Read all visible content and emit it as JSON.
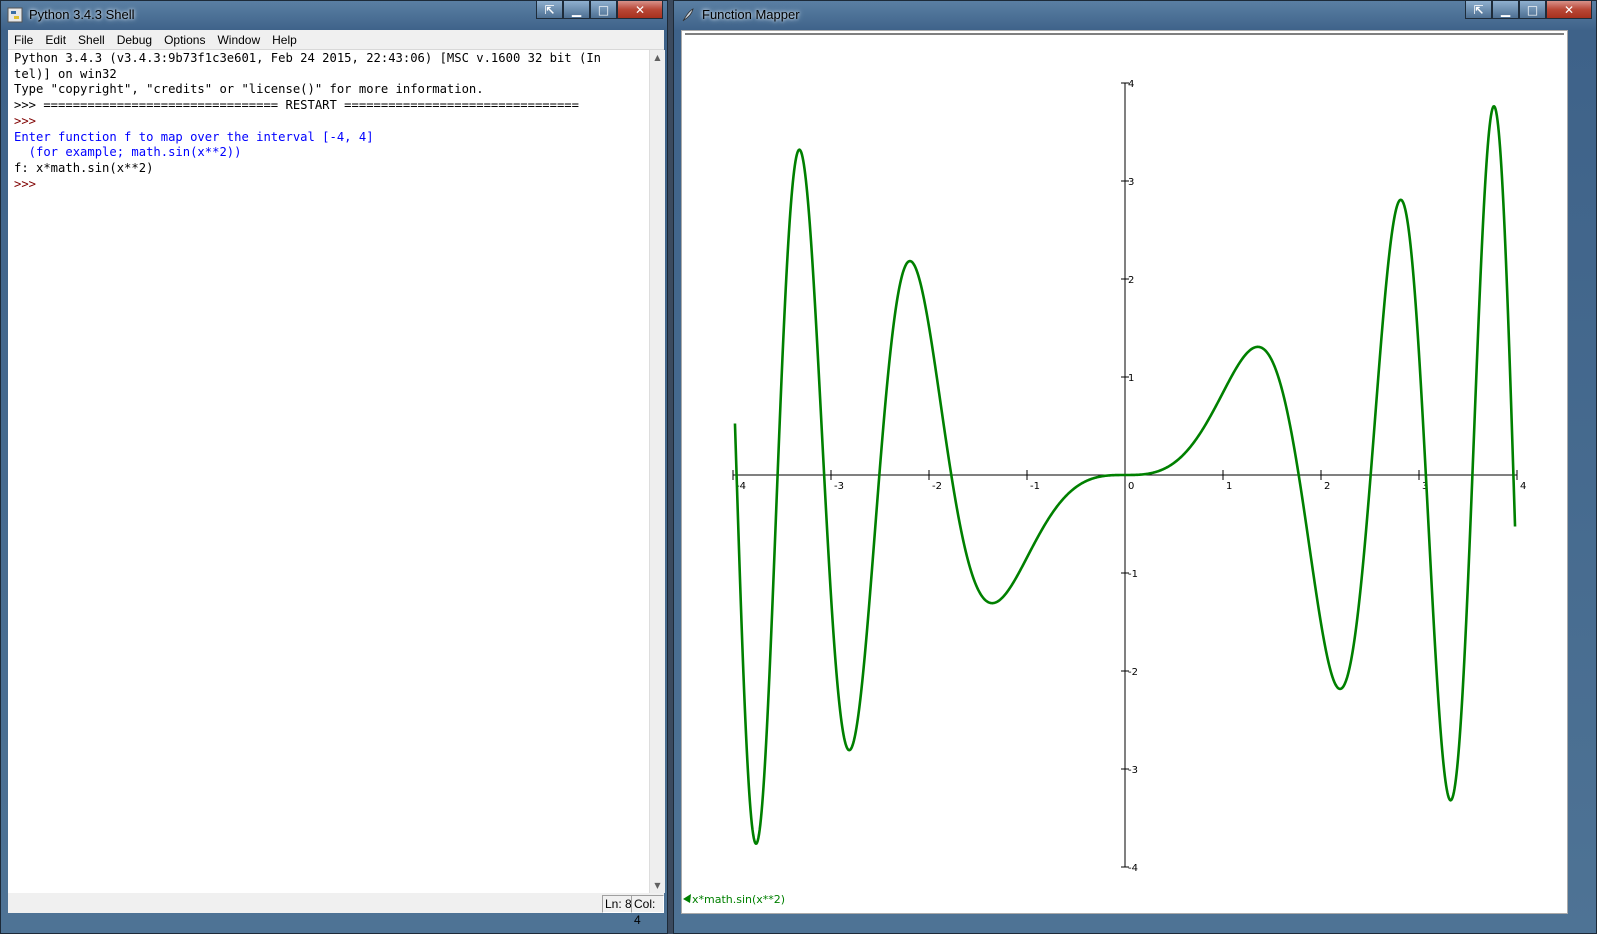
{
  "shell": {
    "title": "Python 3.4.3 Shell",
    "menu": [
      "File",
      "Edit",
      "Shell",
      "Debug",
      "Options",
      "Window",
      "Help"
    ],
    "lines": [
      {
        "text": "Python 3.4.3 (v3.4.3:9b73f1c3e601, Feb 24 2015, 22:43:06) [MSC v.1600 32 bit (In",
        "style": "normal"
      },
      {
        "text": "tel)] on win32",
        "style": "normal"
      },
      {
        "text": "Type \"copyright\", \"credits\" or \"license()\" for more information.",
        "style": "normal"
      },
      {
        "text": ">>> ================================ RESTART ================================",
        "style": "restart"
      },
      {
        "text": ">>> ",
        "style": "prompt"
      },
      {
        "text": "Enter function f to map over the interval [-4, 4]",
        "style": "blue"
      },
      {
        "text": "  (for example; math.sin(x**2))",
        "style": "blue"
      },
      {
        "text": "f: x*math.sin(x**2)",
        "style": "normal"
      },
      {
        "text": ">>> ",
        "style": "prompt"
      }
    ],
    "status": {
      "line": "Ln: 8",
      "col": "Col: 4"
    },
    "controls": {
      "snap": "⇱",
      "minimize": "▁",
      "maximize": "□",
      "close": "✕"
    }
  },
  "mapper": {
    "title": "Function Mapper",
    "legend": "x*math.sin(x**2)",
    "controls": {
      "snap": "⇱",
      "minimize": "▁",
      "maximize": "□",
      "close": "✕"
    }
  },
  "chart_data": {
    "type": "line",
    "function": "x*math.sin(x**2)",
    "xlim": [
      -4,
      4
    ],
    "ylim": [
      -4,
      4
    ],
    "x_ticks": [
      "-4",
      "-3",
      "-2",
      "-1",
      "0",
      "1",
      "2",
      "3",
      "4"
    ],
    "y_ticks": [
      "4",
      "3",
      "2",
      "1",
      "-1",
      "-2",
      "-3",
      "-4"
    ],
    "series": [
      {
        "name": "x*math.sin(x**2)",
        "color": "#008000"
      }
    ],
    "samples": [
      {
        "x": -3.98,
        "y": 1.17
      },
      {
        "x": -3.81,
        "y": -3.77
      },
      {
        "x": -3.33,
        "y": 3.31
      },
      {
        "x": -2.77,
        "y": -2.8
      },
      {
        "x": -2.21,
        "y": 2.17
      },
      {
        "x": -1.77,
        "y": 0.0
      },
      {
        "x": -1.36,
        "y": -1.3
      },
      {
        "x": 0,
        "y": 0
      },
      {
        "x": 1.36,
        "y": 1.3
      },
      {
        "x": 2.21,
        "y": -2.17
      },
      {
        "x": 2.77,
        "y": 2.8
      },
      {
        "x": 3.33,
        "y": -3.31
      },
      {
        "x": 3.81,
        "y": 3.77
      },
      {
        "x": 3.98,
        "y": -1.17
      }
    ],
    "grid": false,
    "legend_position": "bottom-left"
  }
}
